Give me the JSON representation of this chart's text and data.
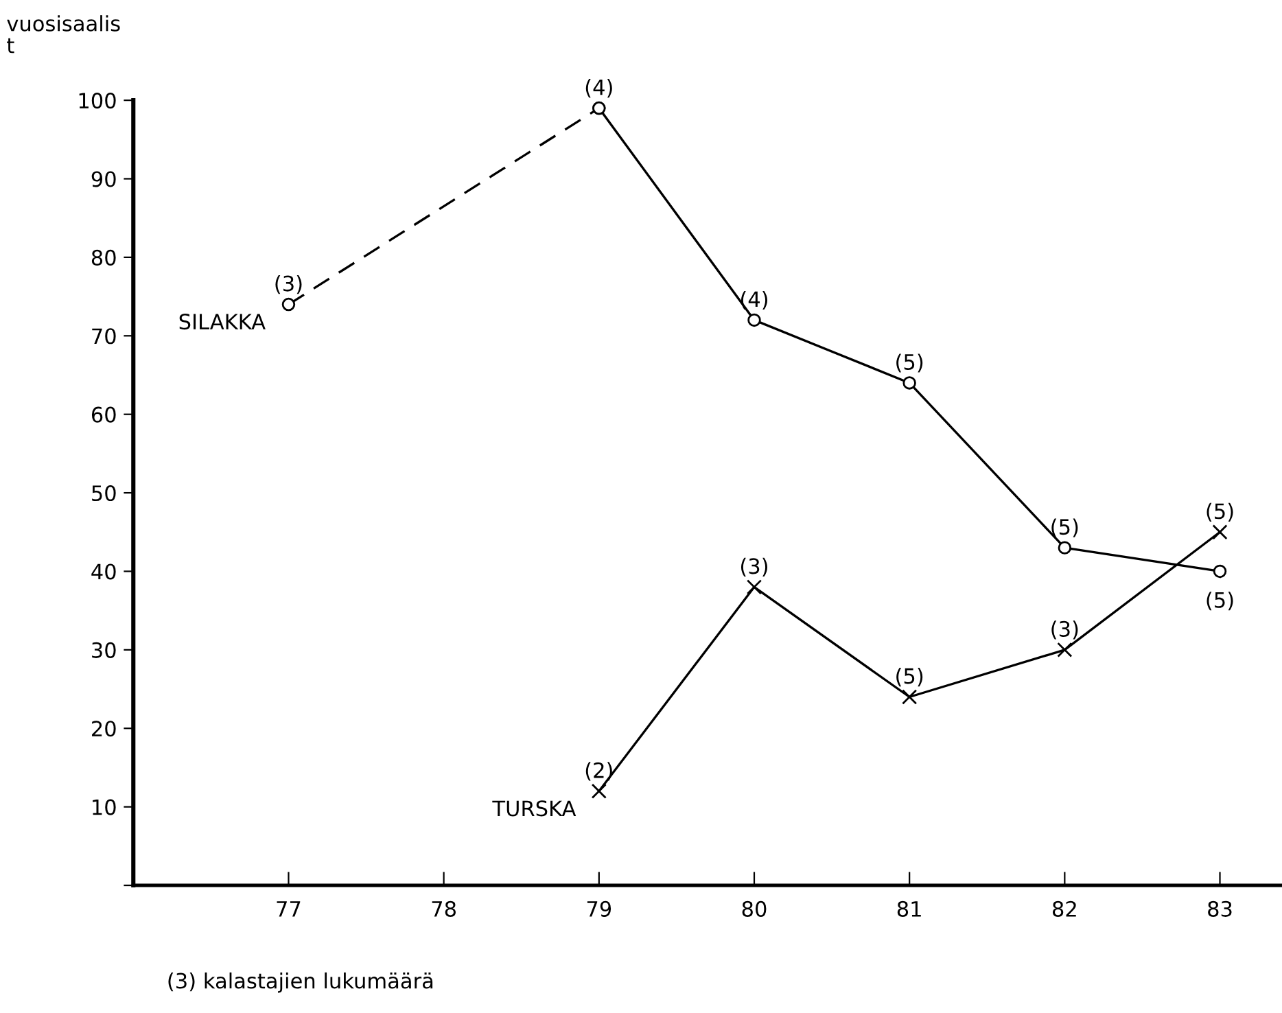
{
  "chart_data": {
    "type": "line",
    "ylabel": "vuosisaalis\nt",
    "xlim": [
      76,
      83.4
    ],
    "ylim": [
      0,
      100
    ],
    "xticks": [
      77,
      78,
      79,
      80,
      81,
      82,
      83
    ],
    "yticks": [
      {
        "value": 0,
        "label": null
      },
      10,
      20,
      30,
      40,
      50,
      60,
      70,
      80,
      90,
      100
    ],
    "grid": false,
    "legend": false,
    "series": [
      {
        "name": "SILAKKA",
        "color": "#000000",
        "x": [
          77,
          79
        ],
        "values": [
          74,
          99
        ],
        "line_style": "dashed",
        "marker": "circle"
      },
      {
        "color": "#000000",
        "x": [
          79,
          80,
          81,
          82,
          83
        ],
        "values": [
          99,
          72,
          64,
          43,
          40
        ],
        "line_style": "solid",
        "marker": "circle"
      },
      {
        "name": "TURSKA",
        "color": "#000000",
        "x": [
          79,
          80,
          81,
          82,
          83
        ],
        "values": [
          12,
          38,
          24,
          30,
          45
        ],
        "line_style": "solid",
        "marker": "cross"
      }
    ],
    "annotations": [
      {
        "text": "(3)",
        "x": 77,
        "y": 74
      },
      {
        "text": "(4)",
        "x": 79,
        "y": 99
      },
      {
        "text": "(4)",
        "x": 80,
        "y": 72
      },
      {
        "text": "(5)",
        "x": 81,
        "y": 64
      },
      {
        "text": "(5)",
        "x": 82,
        "y": 43
      },
      {
        "text": "(5)",
        "x": 83,
        "y": 40
      },
      {
        "text": "(2)",
        "x": 79,
        "y": 12
      },
      {
        "text": "(3)",
        "x": 80,
        "y": 38
      },
      {
        "text": "(5)",
        "x": 81,
        "y": 24
      },
      {
        "text": "(3)",
        "x": 82,
        "y": 30
      },
      {
        "text": "(5)",
        "x": 83,
        "y": 45
      },
      "(3) kalastajien lukumäärä"
    ]
  }
}
